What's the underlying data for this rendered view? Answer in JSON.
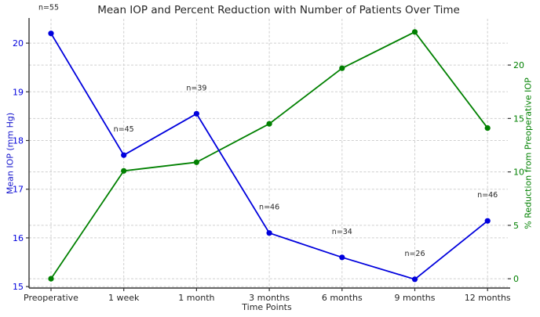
{
  "figure": {
    "title": "Mean IOP and Percent Reduction with Number of Patients Over Time",
    "xlabel": "Time Points",
    "ylabel_left": "Mean IOP (mm Hg)",
    "ylabel_right": "% Reduction from Preoperative IOP"
  },
  "colors": {
    "iop_blue": "#0000dd",
    "reduction_green": "#008000",
    "grid": "#cfcfcf",
    "axis": "#333333",
    "text": "#262626"
  },
  "chart_data": {
    "type": "line",
    "title": "Mean IOP and Percent Reduction with Number of Patients Over Time",
    "xlabel": "Time Points",
    "ylabel_left": "Mean IOP (mm Hg)",
    "ylabel_right": "% Reduction from Preoperative IOP",
    "categories": [
      "Preoperative",
      "1 week",
      "1 month",
      "3 months",
      "6 months",
      "9 months",
      "12 months"
    ],
    "series": [
      {
        "name": "Mean IOP (mm Hg)",
        "axis": "left",
        "color": "#0000dd",
        "marker": "circle",
        "values": [
          20.2,
          17.7,
          18.55,
          16.1,
          15.6,
          15.15,
          16.35
        ]
      },
      {
        "name": "% Reduction from Preoperative IOP",
        "axis": "right",
        "color": "#008000",
        "marker": "circle",
        "values": [
          0.0,
          10.1,
          10.9,
          14.5,
          19.7,
          23.1,
          14.1
        ]
      }
    ],
    "patient_counts": [
      55,
      45,
      39,
      46,
      34,
      26,
      46
    ],
    "annotations": [
      "n=55",
      "n=45",
      "n=39",
      "n=46",
      "n=34",
      "n=26",
      "n=46"
    ],
    "left_ticks": [
      15,
      16,
      17,
      18,
      19,
      20
    ],
    "right_ticks": [
      0,
      5,
      10,
      15,
      20
    ],
    "ylim_left": [
      14.97,
      20.5
    ],
    "ylim_right": [
      -0.87,
      24.33
    ],
    "grid": true,
    "legend": false
  }
}
